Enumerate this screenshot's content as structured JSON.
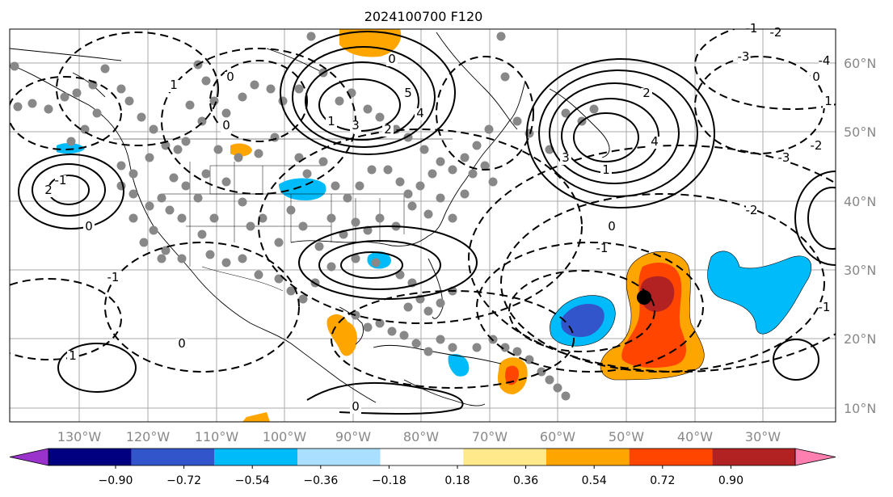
{
  "title": "2024100700 F120",
  "longitude_labels": [
    "130°W",
    "120°W",
    "110°W",
    "100°W",
    "90°W",
    "80°W",
    "70°W",
    "60°W",
    "50°W",
    "40°W",
    "30°W"
  ],
  "latitude_labels": [
    "60°N",
    "50°N",
    "40°N",
    "30°N",
    "20°N",
    "10°N"
  ],
  "colorbar": {
    "tick_labels": [
      "−0.90",
      "−0.72",
      "−0.54",
      "−0.36",
      "−0.18",
      "0.18",
      "0.36",
      "0.54",
      "0.72",
      "0.90"
    ],
    "colors": [
      "#9933cc",
      "#000080",
      "#3355cc",
      "#00bbf9",
      "#aadfff",
      "#ffffff",
      "#ffe98a",
      "#ffa500",
      "#ff4500",
      "#b22222",
      "#ff80b0"
    ]
  },
  "contour_labels": [
    "0",
    "1",
    "2",
    "3",
    "4",
    "5",
    "1",
    "2",
    "3",
    "4",
    "-1",
    "-2",
    "-3",
    "-4",
    "0",
    "1",
    "2",
    "-1",
    "-2",
    "-3",
    "0",
    "1",
    "0",
    "-1",
    "0",
    "-2",
    "-1",
    "0",
    "-1",
    "0",
    "1",
    "0"
  ],
  "marked_storm": "storm-center"
}
